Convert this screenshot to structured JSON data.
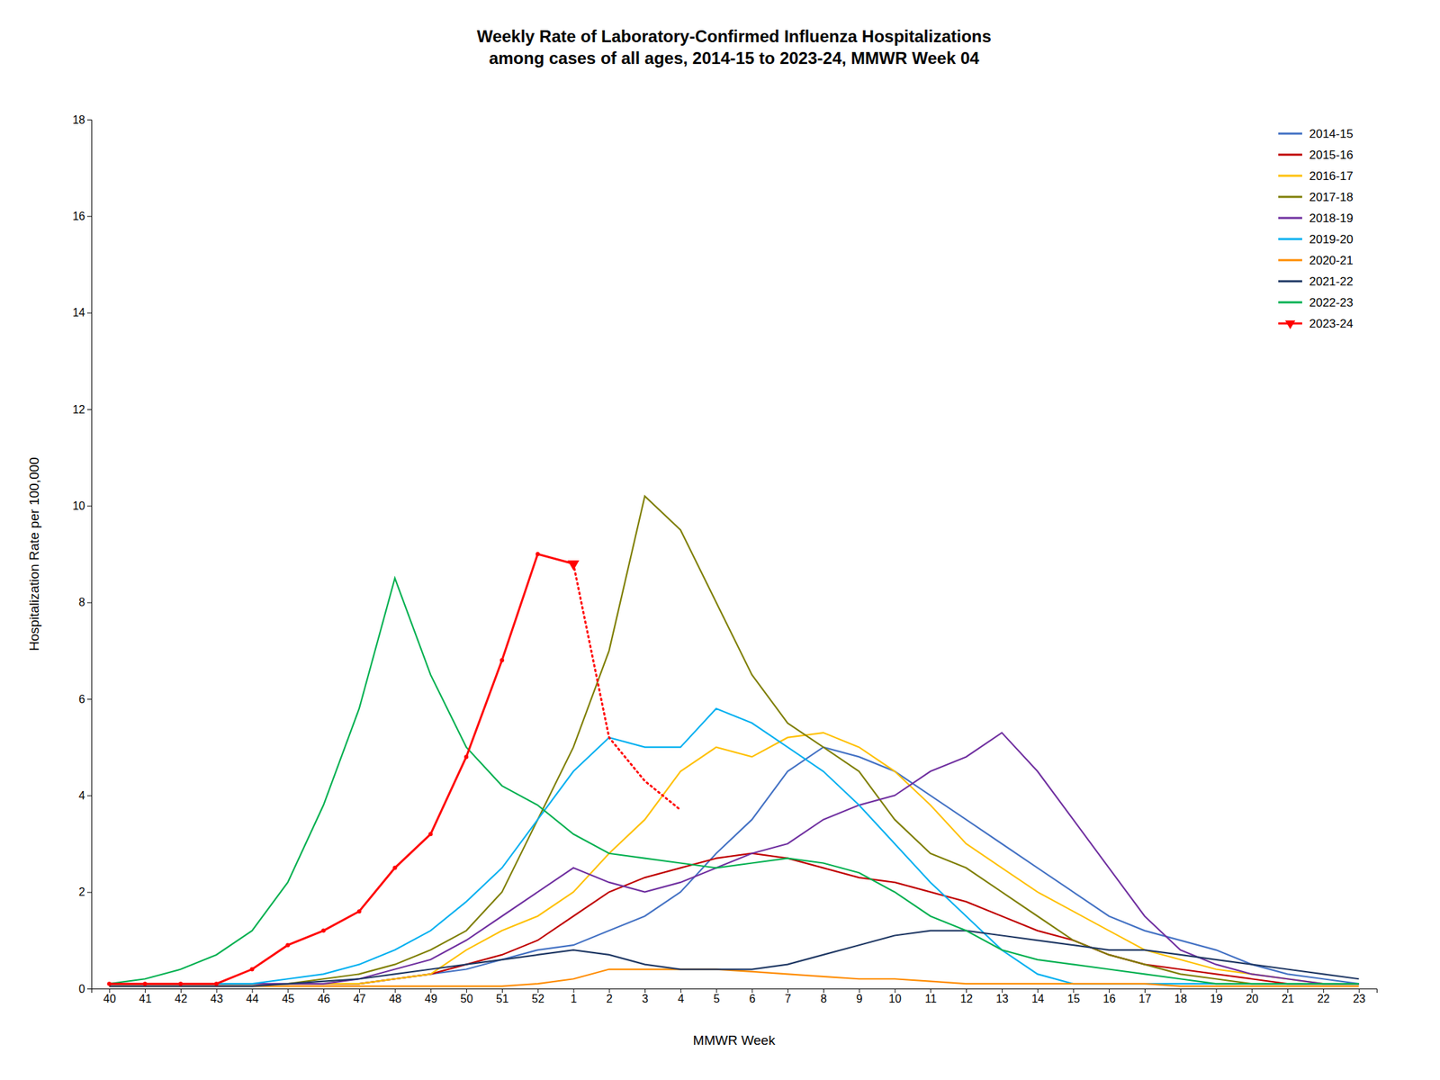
{
  "chart_data": {
    "type": "line",
    "title": "Weekly Rate of Laboratory-Confirmed Influenza Hospitalizations\namong cases of all ages, 2014-15 to 2023-24, MMWR Week 04",
    "x_label": "MMWR Week",
    "y_label": "Hospitalization Rate per 100,000",
    "categories": [
      "40",
      "41",
      "42",
      "43",
      "44",
      "45",
      "46",
      "47",
      "48",
      "49",
      "50",
      "51",
      "52",
      "1",
      "2",
      "3",
      "4",
      "5",
      "6",
      "7",
      "8",
      "9",
      "10",
      "11",
      "12",
      "13",
      "14",
      "15",
      "16",
      "17",
      "18",
      "19",
      "20",
      "21",
      "22",
      "23"
    ],
    "ylim": [
      0,
      18
    ],
    "yticks": [
      0,
      2,
      4,
      6,
      8,
      10,
      12,
      14,
      16,
      18
    ],
    "grid": false,
    "legend": "upper right",
    "series": [
      {
        "name": "2014-15",
        "color": "#4472C4",
        "line_style": "solid",
        "values": [
          0.1,
          0.1,
          0.1,
          0.1,
          0.1,
          0.1,
          0.1,
          0.1,
          0.2,
          0.3,
          0.4,
          0.6,
          0.8,
          0.9,
          1.2,
          1.5,
          2.0,
          2.8,
          3.5,
          4.5,
          5.0,
          4.8,
          4.5,
          4.0,
          3.5,
          3.0,
          2.5,
          2.0,
          1.5,
          1.2,
          1.0,
          0.8,
          0.5,
          0.3,
          0.2,
          0.1
        ]
      },
      {
        "name": "2015-16",
        "color": "#C00000",
        "line_style": "solid",
        "values": [
          0.1,
          0.1,
          0.1,
          0.1,
          0.1,
          0.1,
          0.1,
          0.1,
          0.2,
          0.3,
          0.5,
          0.7,
          1.0,
          1.5,
          2.0,
          2.3,
          2.5,
          2.7,
          2.8,
          2.7,
          2.5,
          2.3,
          2.2,
          2.0,
          1.8,
          1.5,
          1.2,
          1.0,
          0.7,
          0.5,
          0.4,
          0.3,
          0.2,
          0.1,
          0.1,
          0.1
        ]
      },
      {
        "name": "2016-17",
        "color": "#FFC000",
        "line_style": "solid",
        "values": [
          0.1,
          0.1,
          0.1,
          0.1,
          0.1,
          0.1,
          0.1,
          0.1,
          0.2,
          0.3,
          0.8,
          1.2,
          1.5,
          2.0,
          2.8,
          3.5,
          4.5,
          5.0,
          4.8,
          5.2,
          5.3,
          5.0,
          4.5,
          3.8,
          3.0,
          2.5,
          2.0,
          1.6,
          1.2,
          0.8,
          0.6,
          0.4,
          0.3,
          0.2,
          0.1,
          0.1
        ]
      },
      {
        "name": "2017-18",
        "color": "#7F7F00",
        "line_style": "solid",
        "values": [
          0.1,
          0.1,
          0.1,
          0.1,
          0.1,
          0.1,
          0.2,
          0.3,
          0.5,
          0.8,
          1.2,
          2.0,
          3.5,
          5.0,
          7.0,
          10.2,
          9.5,
          8.0,
          6.5,
          5.5,
          5.0,
          4.5,
          3.5,
          2.8,
          2.5,
          2.0,
          1.5,
          1.0,
          0.7,
          0.5,
          0.3,
          0.2,
          0.1,
          0.1,
          0.1,
          0.1
        ]
      },
      {
        "name": "2018-19",
        "color": "#7030A0",
        "line_style": "solid",
        "values": [
          0.1,
          0.1,
          0.1,
          0.1,
          0.1,
          0.1,
          0.1,
          0.2,
          0.4,
          0.6,
          1.0,
          1.5,
          2.0,
          2.5,
          2.2,
          2.0,
          2.2,
          2.5,
          2.8,
          3.0,
          3.5,
          3.8,
          4.0,
          4.5,
          4.8,
          5.3,
          4.5,
          3.5,
          2.5,
          1.5,
          0.8,
          0.5,
          0.3,
          0.2,
          0.1,
          0.1
        ]
      },
      {
        "name": "2019-20",
        "color": "#00B0F0",
        "line_style": "solid",
        "values": [
          0.1,
          0.1,
          0.1,
          0.1,
          0.1,
          0.2,
          0.3,
          0.5,
          0.8,
          1.2,
          1.8,
          2.5,
          3.5,
          4.5,
          5.2,
          5.0,
          5.0,
          5.8,
          5.5,
          5.0,
          4.5,
          3.8,
          3.0,
          2.2,
          1.5,
          0.8,
          0.3,
          0.1,
          0.1,
          0.1,
          0.1,
          0.1,
          0.1,
          0.1,
          0.1,
          0.1
        ]
      },
      {
        "name": "2020-21",
        "color": "#FF8C00",
        "line_style": "solid",
        "values": [
          0.05,
          0.05,
          0.05,
          0.05,
          0.05,
          0.05,
          0.05,
          0.05,
          0.05,
          0.05,
          0.05,
          0.05,
          0.1,
          0.2,
          0.4,
          0.4,
          0.4,
          0.4,
          0.35,
          0.3,
          0.25,
          0.2,
          0.2,
          0.15,
          0.1,
          0.1,
          0.1,
          0.1,
          0.1,
          0.1,
          0.05,
          0.05,
          0.05,
          0.05,
          0.05,
          0.05
        ]
      },
      {
        "name": "2021-22",
        "color": "#1F3864",
        "line_style": "solid",
        "values": [
          0.05,
          0.05,
          0.05,
          0.05,
          0.05,
          0.1,
          0.15,
          0.2,
          0.3,
          0.4,
          0.5,
          0.6,
          0.7,
          0.8,
          0.7,
          0.5,
          0.4,
          0.4,
          0.4,
          0.5,
          0.7,
          0.9,
          1.1,
          1.2,
          1.2,
          1.1,
          1.0,
          0.9,
          0.8,
          0.8,
          0.7,
          0.6,
          0.5,
          0.4,
          0.3,
          0.2
        ]
      },
      {
        "name": "2022-23",
        "color": "#00B050",
        "line_style": "solid",
        "values": [
          0.1,
          0.2,
          0.4,
          0.7,
          1.2,
          2.2,
          3.8,
          5.8,
          8.5,
          6.5,
          5.0,
          4.2,
          3.8,
          3.2,
          2.8,
          2.7,
          2.6,
          2.5,
          2.6,
          2.7,
          2.6,
          2.4,
          2.0,
          1.5,
          1.2,
          0.8,
          0.6,
          0.5,
          0.4,
          0.3,
          0.2,
          0.1,
          0.1,
          0.1,
          0.1,
          0.1
        ]
      },
      {
        "name": "2023-24",
        "color": "#FF0000",
        "line_style": "solid",
        "marker": "circle",
        "values": [
          0.1,
          0.1,
          0.1,
          0.1,
          0.4,
          0.9,
          1.2,
          1.6,
          2.5,
          3.2,
          4.8,
          6.8,
          9.0,
          8.8,
          null,
          null,
          null,
          null,
          null,
          null,
          null,
          null,
          null,
          null,
          null,
          null,
          null,
          null,
          null,
          null,
          null,
          null,
          null,
          null,
          null,
          null
        ]
      },
      {
        "name": "2023-24",
        "color": "#FF0000",
        "line_style": "dotted",
        "values": [
          null,
          null,
          null,
          null,
          null,
          null,
          null,
          null,
          null,
          null,
          null,
          null,
          null,
          8.8,
          5.2,
          4.3,
          3.7,
          null,
          null,
          null,
          null,
          null,
          null,
          null,
          null,
          null,
          null,
          null,
          null,
          null,
          null,
          null,
          null,
          null,
          null,
          null
        ]
      }
    ]
  }
}
